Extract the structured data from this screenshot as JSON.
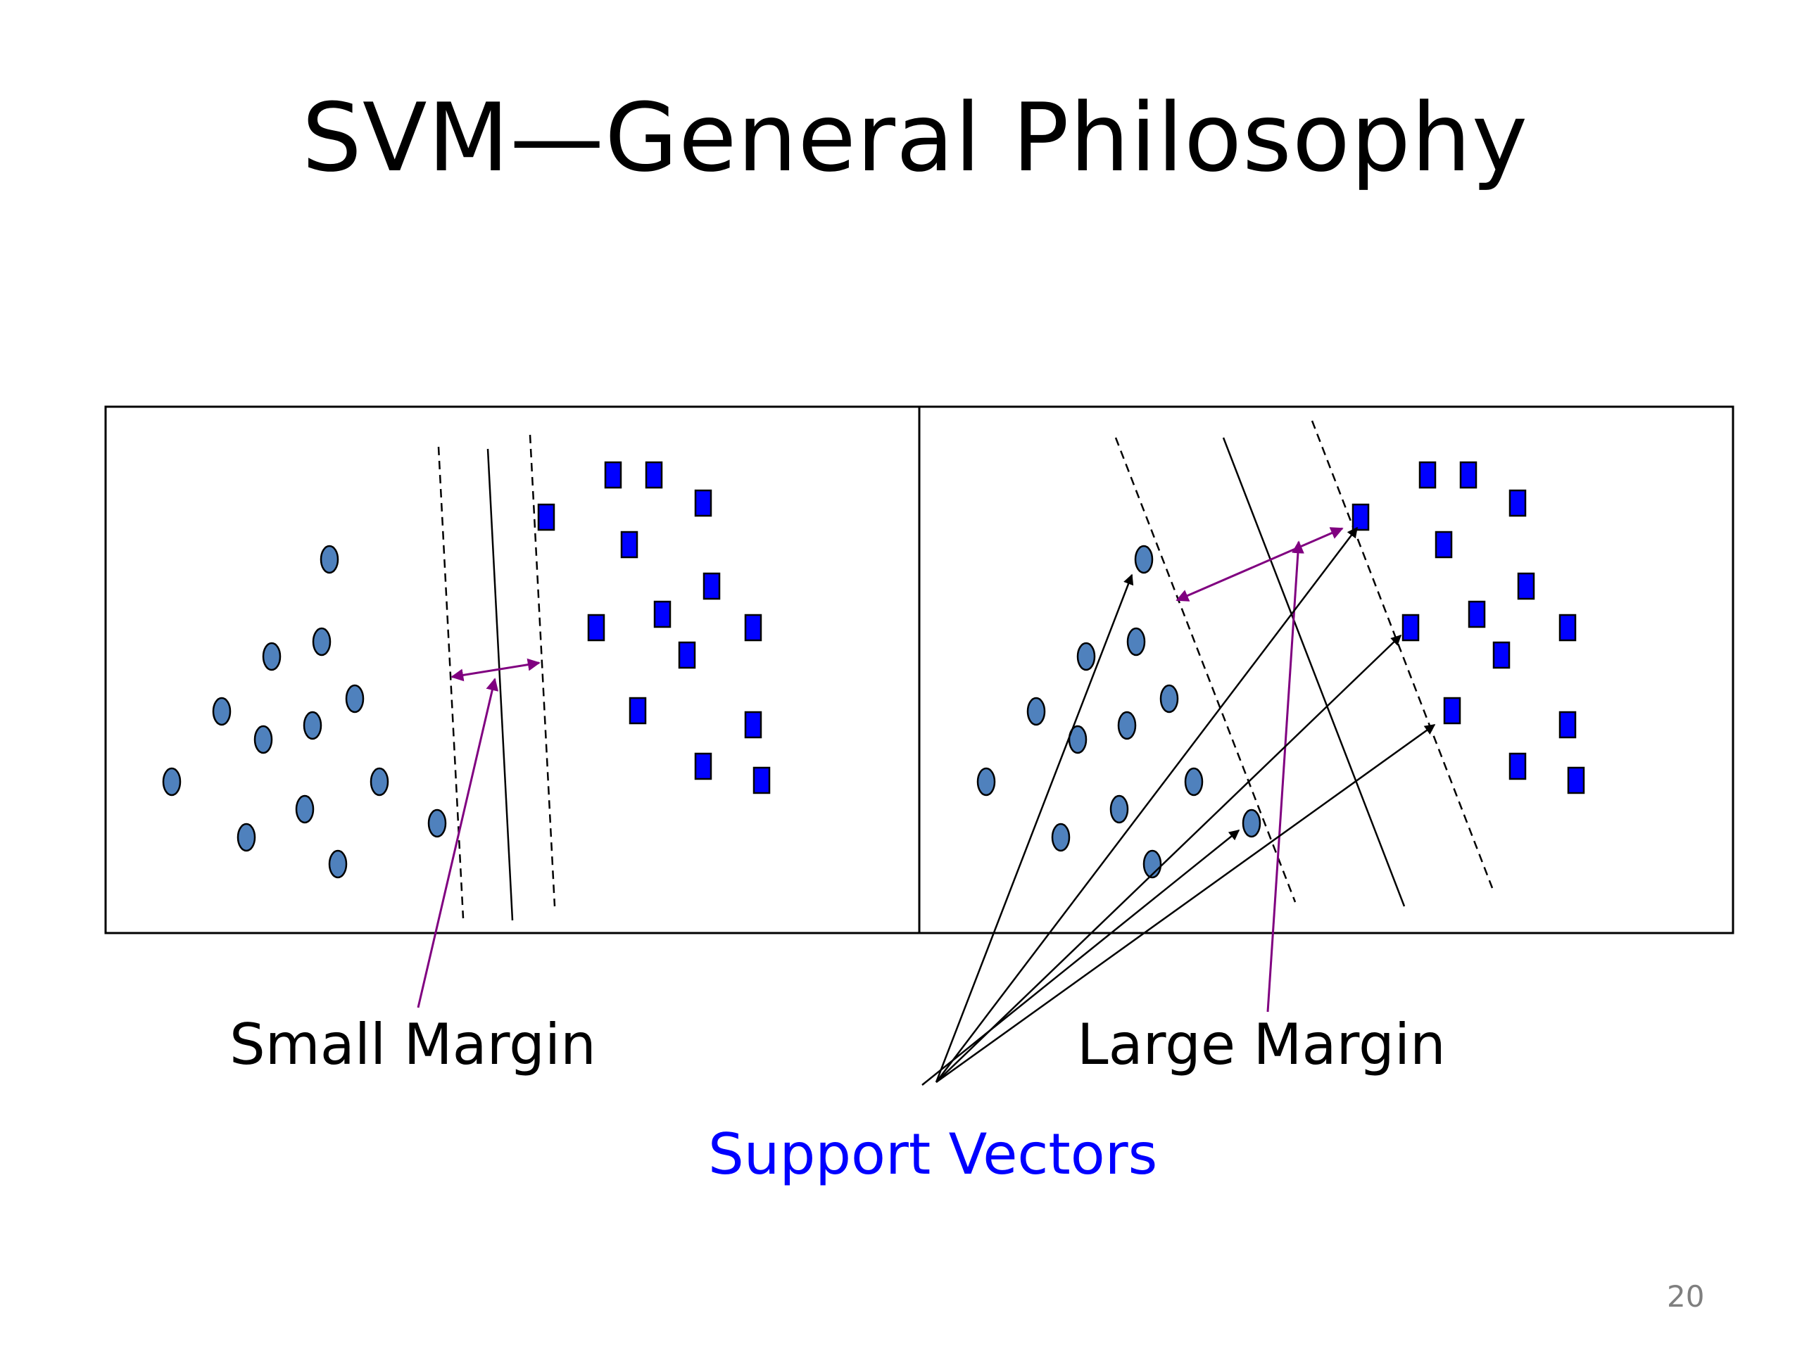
{
  "slide": {
    "title": "SVM—General Philosophy",
    "page_number": "20"
  },
  "labels": {
    "small_margin": "Small Margin",
    "large_margin": "Large Margin",
    "support_vectors": "Support Vectors"
  },
  "colors": {
    "circle_fill": "#4f81bd",
    "square_fill": "#0000ff",
    "margin_arrow": "#800080",
    "support_vectors_text": "#0000ff",
    "page_number": "#7f7f7f"
  }
}
